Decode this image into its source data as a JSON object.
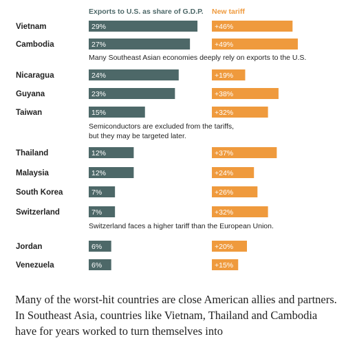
{
  "chart_data": {
    "type": "bar",
    "series": [
      {
        "name": "Exports to U.S. as share of G.D.P.",
        "color": "#4d6868",
        "labels": [
          "29%",
          "27%",
          "24%",
          "23%",
          "15%",
          "12%",
          "12%",
          "7%",
          "7%",
          "6%",
          "6%"
        ],
        "values": [
          29,
          27,
          24,
          23,
          15,
          12,
          12,
          7,
          7,
          6,
          6
        ]
      },
      {
        "name": "New tariff",
        "color": "#ef9a3d",
        "labels": [
          "+46%",
          "+49%",
          "+19%",
          "+38%",
          "+32%",
          "+37%",
          "+24%",
          "+26%",
          "+32%",
          "+20%",
          "+15%"
        ],
        "values": [
          46,
          49,
          19,
          38,
          32,
          37,
          24,
          26,
          32,
          20,
          15
        ]
      }
    ],
    "categories": [
      "Vietnam",
      "Cambodia",
      "Nicaragua",
      "Guyana",
      "Taiwan",
      "Thailand",
      "Malaysia",
      "South Korea",
      "Switzerland",
      "Jordan",
      "Venezuela"
    ],
    "annotations": [
      {
        "after": "Cambodia",
        "lines": [
          "Many Southeast Asian economies deeply rely on exports to the U.S."
        ]
      },
      {
        "after": "Taiwan",
        "lines": [
          "Semiconductors are excluded from the tariffs,",
          "but they may be targeted later."
        ]
      },
      {
        "after": "Switzerland",
        "lines": [
          "Switzerland faces a higher tariff than the European Union."
        ]
      }
    ]
  },
  "paragraph": "Many of the worst-hit countries are close American allies and partners. In Southeast Asia, countries like Vietnam, Thailand and Cambodia have for years worked to turn themselves into"
}
